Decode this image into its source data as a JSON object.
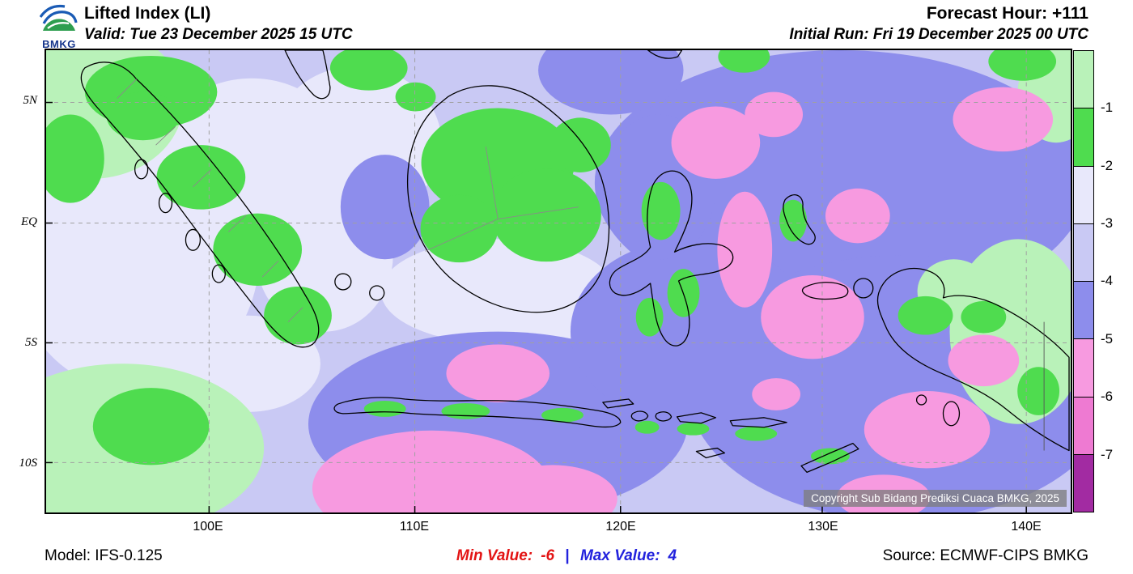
{
  "header": {
    "logo_text": "BMKG",
    "title": "Lifted Index (LI)",
    "valid_label": "Valid: Tue 23 December 2025 15 UTC",
    "forecast_hour": "Forecast Hour: +111",
    "initial_run": "Initial Run: Fri 19 December 2025 00 UTC"
  },
  "map": {
    "lat_labels": [
      "5N",
      "EQ",
      "5S",
      "10S"
    ],
    "lon_labels": [
      "100E",
      "110E",
      "120E",
      "130E",
      "140E"
    ],
    "copyright": "Copyright Sub Bidang Prediksi Cuaca BMKG, 2025"
  },
  "colorbar": {
    "labels": [
      "-1",
      "-2",
      "-3",
      "-4",
      "-5",
      "-6",
      "-7"
    ],
    "colors": [
      "#b9f2b9",
      "#4fdc4f",
      "#e8e8fb",
      "#c9c9f4",
      "#8d8dec",
      "#f79ae0",
      "#ee7ad2",
      "#a22ba2"
    ]
  },
  "footer": {
    "model": "Model: IFS-0.125",
    "min_label": "Min Value:",
    "min_value": "-6",
    "separator": "|",
    "max_label": "Max Value:",
    "max_value": "4",
    "source": "Source: ECMWF-CIPS BMKG"
  }
}
